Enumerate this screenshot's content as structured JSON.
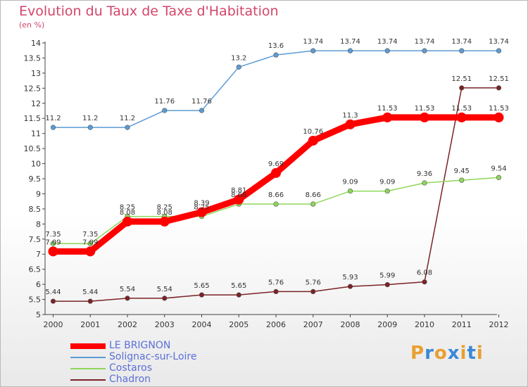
{
  "chart_data": {
    "type": "line",
    "title": "Evolution du Taux de Taxe d'Habitation",
    "subtitle": "(en %)",
    "x": [
      "2000",
      "2001",
      "2002",
      "2003",
      "2004",
      "2005",
      "2006",
      "2007",
      "2008",
      "2009",
      "2010",
      "2011",
      "2012"
    ],
    "yticks": [
      "5",
      "5.5",
      "6",
      "6.5",
      "7",
      "7.5",
      "8",
      "8.5",
      "9",
      "9.5",
      "10",
      "10.5",
      "11",
      "11.5",
      "12",
      "12.5",
      "13",
      "13.5",
      "14"
    ],
    "ylim": [
      5,
      14
    ],
    "grid": false,
    "legend_position": "bottom-left",
    "series": [
      {
        "name": "LE BRIGNON",
        "color": "#ff0000",
        "values": [
          7.09,
          7.09,
          8.08,
          8.08,
          8.39,
          8.81,
          9.69,
          10.76,
          11.3,
          11.53,
          11.53,
          11.53,
          11.53
        ],
        "labels": [
          "7.09",
          "7.09",
          "8.08",
          "8.08",
          "8.39",
          "8.81",
          "9.69",
          "10.76",
          "11.3",
          "11.53",
          "11.53",
          "11.53",
          "11.53"
        ]
      },
      {
        "name": "Solignac-sur-Loire",
        "color": "#5b9bd5",
        "values": [
          11.2,
          11.2,
          11.2,
          11.76,
          11.76,
          13.2,
          13.6,
          13.74,
          13.74,
          13.74,
          13.74,
          13.74,
          13.74
        ],
        "labels": [
          "11.2",
          "11.2",
          "11.2",
          "11.76",
          "11.76",
          "13.2",
          "13.6",
          "13.74",
          "13.74",
          "13.74",
          "13.74",
          "13.74",
          "13.74"
        ]
      },
      {
        "name": "Costaros",
        "color": "#8fd65a",
        "values": [
          7.35,
          7.35,
          8.25,
          8.25,
          8.25,
          8.66,
          8.66,
          8.66,
          9.09,
          9.09,
          9.36,
          9.45,
          9.54
        ],
        "labels": [
          "7.35",
          "7.35",
          "8.25",
          "8.25",
          "8.25",
          "8.66",
          "8.66",
          "8.66",
          "9.09",
          "9.09",
          "9.36",
          "9.45",
          "9.54"
        ]
      },
      {
        "name": "Chadron",
        "color": "#7a2226",
        "values": [
          5.44,
          5.44,
          5.54,
          5.54,
          5.65,
          5.65,
          5.76,
          5.76,
          5.93,
          5.99,
          6.08,
          12.51,
          12.51
        ],
        "labels": [
          "5.44",
          "5.44",
          "5.54",
          "5.54",
          "5.65",
          "5.65",
          "5.76",
          "5.76",
          "5.93",
          "5.99",
          "6.08",
          "12.51",
          "12.51"
        ]
      }
    ]
  },
  "logo": {
    "letters": [
      "P",
      "r",
      "o",
      "x",
      "i",
      "t",
      "i"
    ],
    "colors": [
      "#e8a030",
      "#3b88d8",
      "#e8a030",
      "#3b88d8",
      "#e8a030",
      "#3b88d8",
      "#e8a030"
    ]
  }
}
